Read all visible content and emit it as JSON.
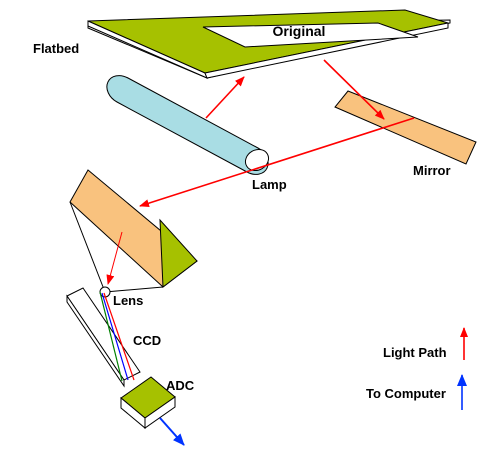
{
  "labels": {
    "original": "Original",
    "flatbed": "Flatbed",
    "lamp": "Lamp",
    "mirror": "Mirror",
    "lens": "Lens",
    "ccd": "CCD",
    "adc": "ADC"
  },
  "legend": {
    "light_path": "Light Path",
    "to_computer": "To Computer"
  },
  "colors": {
    "flatbed_green": "#a6c100",
    "lamp_cyan": "#a9dde4",
    "mirror_orange": "#f9c27e",
    "light_path_red": "#ff0000",
    "to_computer_blue": "#0033ff",
    "ccd_green_line": "#008000",
    "ccd_blue_line": "#0000ff",
    "ccd_red_line": "#ff0000"
  }
}
